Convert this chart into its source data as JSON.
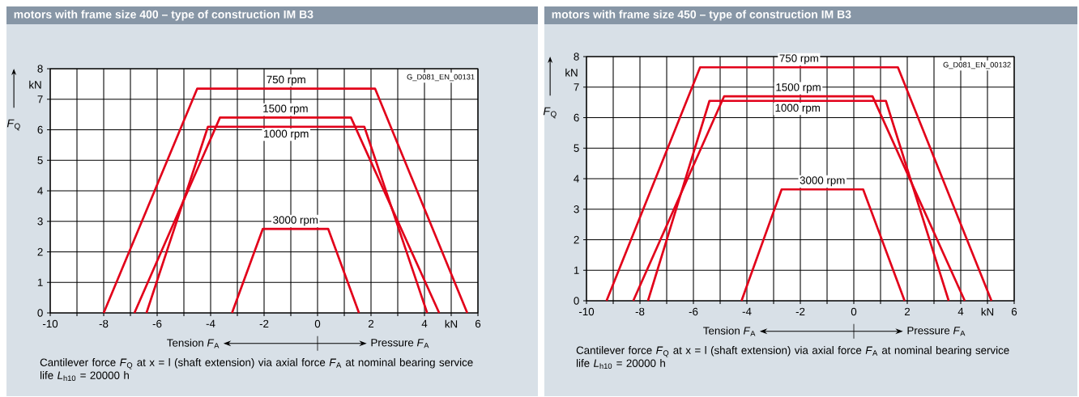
{
  "chart_data": [
    {
      "type": "line",
      "title": "motors with frame size 400 – type of construction IM B3",
      "ylabel": "*F*$_{Q}$",
      "grid": true,
      "xlim": [
        -10,
        6
      ],
      "ylim": [
        0,
        8
      ],
      "xticks": [
        -10,
        {
          "value": -9,
          "label": null
        },
        -8,
        {
          "value": -7,
          "label": null
        },
        -6,
        {
          "value": -5,
          "label": null
        },
        -4,
        {
          "value": -3,
          "label": null
        },
        -2,
        {
          "value": -1,
          "label": null
        },
        0,
        {
          "value": 1,
          "label": null
        },
        2,
        {
          "value": 3,
          "label": null
        },
        4,
        {
          "value": 5,
          "label": "kN"
        },
        6
      ],
      "yticks": [
        0,
        1,
        2,
        3,
        4,
        5,
        6,
        7,
        8
      ],
      "annotations": [
        "kN",
        "Tension *F*$_{A}$",
        "Pressure *F*$_{A}$",
        "G_D081_EN_00131",
        "Cantilever force *F*$_{Q}$ at x = l (shaft extension) via axial force *F*$_{A}$ at nominal bearing service life *L*$_{h10}$ = 20000 h"
      ],
      "series": [
        {
          "name": "750 rpm",
          "color": "#e2001a",
          "x": [
            -8,
            -4.5,
            2.15,
            5.6
          ],
          "values": [
            0,
            7.35,
            7.35,
            0
          ]
        },
        {
          "name": "1500 rpm",
          "color": "#e2001a",
          "x": [
            -6.85,
            -3.65,
            1.25,
            4.55
          ],
          "values": [
            0,
            6.4,
            6.4,
            0
          ]
        },
        {
          "name": "1000 rpm",
          "color": "#e2001a",
          "x": [
            -6.4,
            -4.1,
            1.75,
            4.1
          ],
          "values": [
            0,
            6.1,
            6.1,
            0
          ]
        },
        {
          "name": "3000 rpm",
          "color": "#e2001a",
          "x": [
            -3.2,
            -2.05,
            0.4,
            1.55
          ],
          "values": [
            0,
            2.75,
            2.75,
            0
          ]
        }
      ]
    },
    {
      "type": "line",
      "title": "motors with frame size 450 – type of construction IM B3",
      "ylabel": "*F*$_{Q}$",
      "grid": true,
      "xlim": [
        -10,
        6
      ],
      "ylim": [
        0,
        8
      ],
      "xticks": [
        -10,
        {
          "value": -9,
          "label": null
        },
        -8,
        {
          "value": -7,
          "label": null
        },
        -6,
        {
          "value": -5,
          "label": null
        },
        -4,
        {
          "value": -3,
          "label": null
        },
        -2,
        {
          "value": -1,
          "label": null
        },
        0,
        {
          "value": 1,
          "label": null
        },
        2,
        {
          "value": 3,
          "label": null
        },
        4,
        {
          "value": 5,
          "label": "kN"
        },
        6
      ],
      "yticks": [
        0,
        1,
        2,
        3,
        4,
        5,
        6,
        7,
        8
      ],
      "annotations": [
        "kN",
        "Tension *F*$_{A}$",
        "Pressure *F*$_{A}$",
        "G_D081_EN_00132",
        "Cantilever force *F*$_{Q}$ at x = l (shaft extension) via axial force *F*$_{A}$ at nominal bearing service life *L*$_{h10}$ = 20000 h"
      ],
      "series": [
        {
          "name": "750 rpm",
          "color": "#e2001a",
          "x": [
            -9.25,
            -5.75,
            1.65,
            5.15
          ],
          "values": [
            0,
            7.65,
            7.65,
            0
          ]
        },
        {
          "name": "1500 rpm",
          "color": "#e2001a",
          "x": [
            -8.25,
            -4.85,
            0.7,
            4.15
          ],
          "values": [
            0,
            6.7,
            6.7,
            0
          ]
        },
        {
          "name": "1000 rpm",
          "color": "#e2001a",
          "x": [
            -7.7,
            -5.4,
            1.2,
            3.55
          ],
          "values": [
            0,
            6.55,
            6.55,
            0
          ]
        },
        {
          "name": "3000 rpm",
          "color": "#e2001a",
          "x": [
            -4.2,
            -2.7,
            0.35,
            1.9
          ],
          "values": [
            0,
            3.65,
            3.65,
            0
          ]
        }
      ]
    }
  ]
}
